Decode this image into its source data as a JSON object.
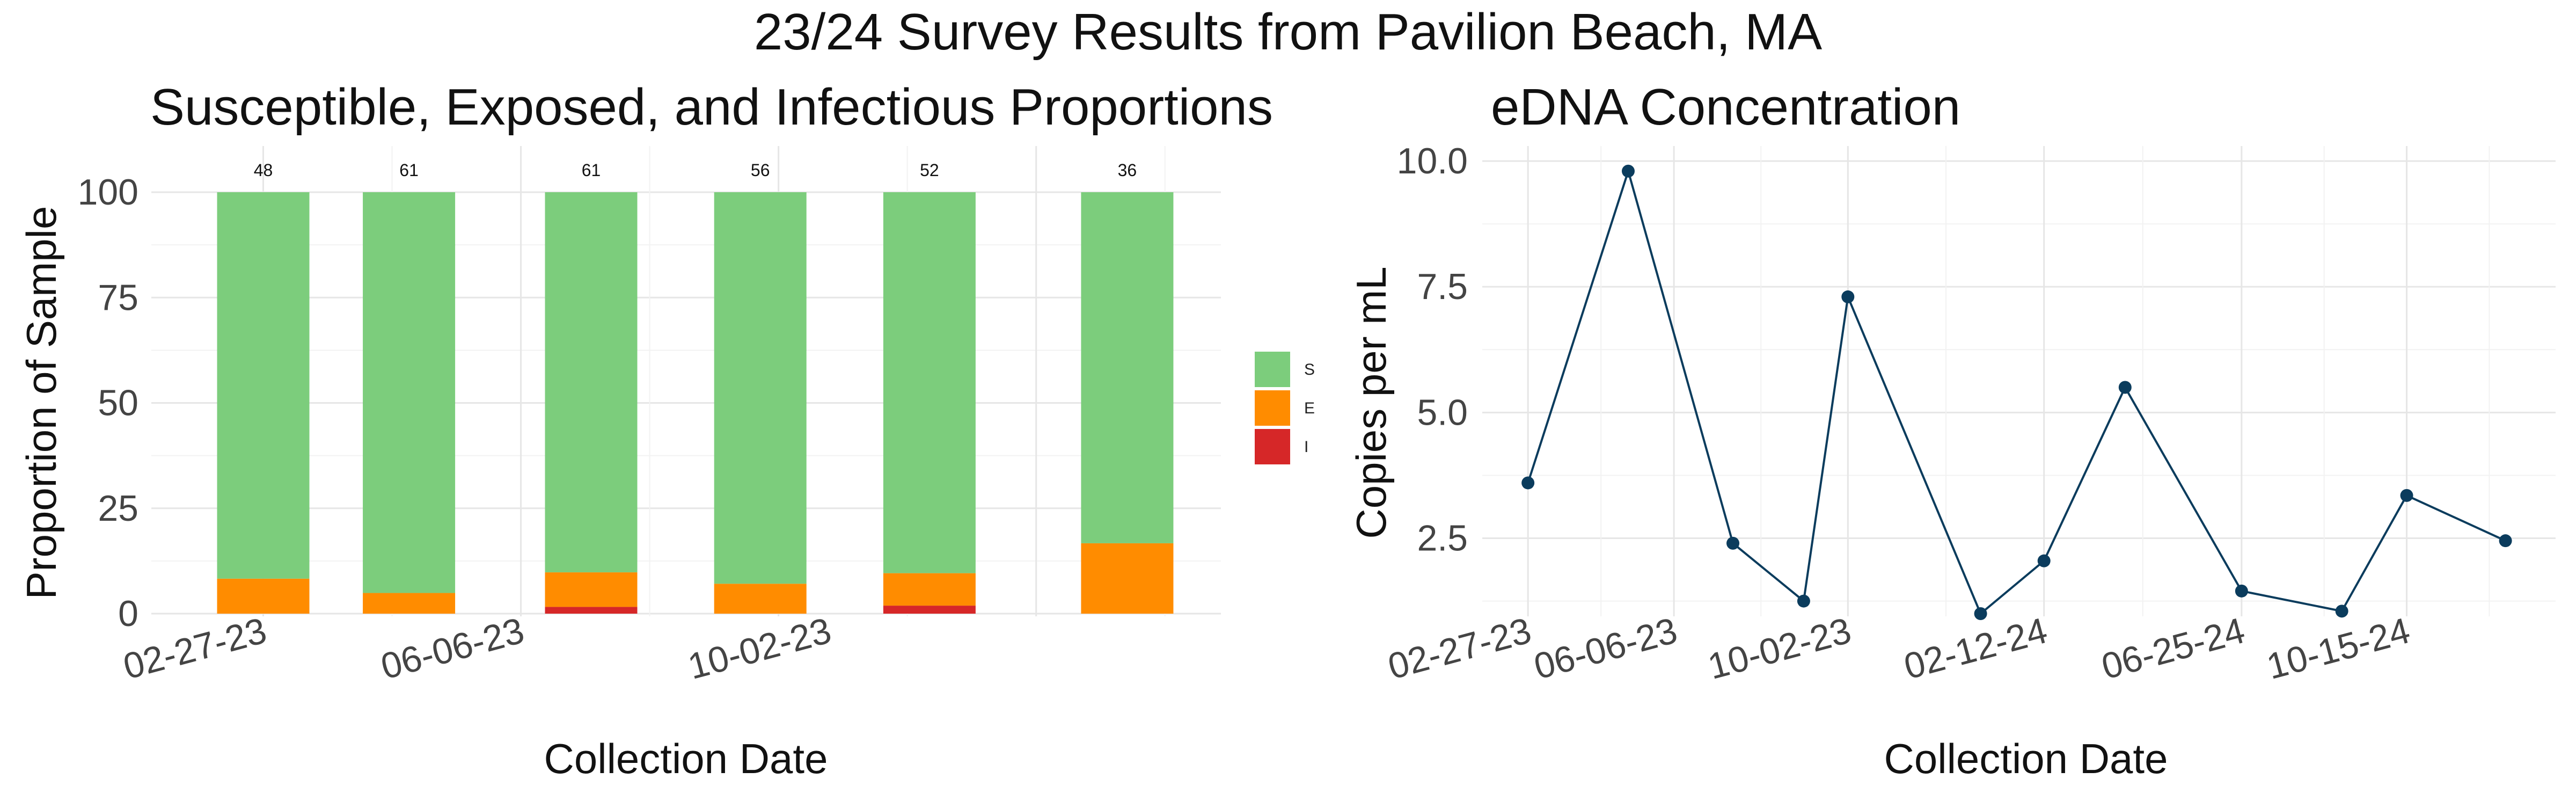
{
  "title": "23/24 Survey Results from  Pavilion Beach, MA",
  "colors": {
    "S": "#7ccd7c",
    "E": "#ff8c00",
    "I": "#d62728",
    "line": "#0b3c5d"
  },
  "chart_data": [
    {
      "type": "bar",
      "stacked": true,
      "title": "Susceptible, Exposed, and Infectious Proportions",
      "xlabel": "Collection Date",
      "ylabel": "Proportion of Sample",
      "ylim": [
        0,
        100
      ],
      "yticks": [
        0,
        25,
        50,
        75,
        100
      ],
      "x_axis_type": "date",
      "xlim": [
        "2023-01-15",
        "2024-03-01"
      ],
      "xticks": [
        {
          "date": "2023-02-27",
          "label": "02-27-23"
        },
        {
          "date": "2023-06-06",
          "label": "06-06-23"
        },
        {
          "date": "2023-10-02",
          "label": "10-02-23"
        }
      ],
      "dates": [
        "2023-02-27",
        "2023-04-24",
        "2023-07-03",
        "2023-09-06",
        "2023-11-10",
        "2024-01-25"
      ],
      "series": [
        {
          "name": "S",
          "values": [
            91.7,
            95.1,
            90.2,
            92.9,
            90.4,
            83.3
          ]
        },
        {
          "name": "E",
          "values": [
            8.3,
            4.9,
            8.2,
            7.1,
            7.7,
            16.7
          ]
        },
        {
          "name": "I",
          "values": [
            0,
            0,
            1.6,
            0,
            1.9,
            0
          ]
        }
      ],
      "counts": [
        "48",
        "61",
        "61",
        "56",
        "52",
        "36"
      ],
      "legend": {
        "position": "right",
        "entries": [
          "S",
          "E",
          "I"
        ]
      },
      "grid": true
    },
    {
      "type": "line",
      "markers": true,
      "title": "eDNA Concentration",
      "xlabel": "Collection Date",
      "ylabel": "Copies per mL",
      "ylim": [
        1.0,
        10.0
      ],
      "yticks": [
        "2.5",
        "5.0",
        "7.5",
        "10.0"
      ],
      "x_axis_type": "date",
      "xlim": [
        "2023-01-27",
        "2025-01-24"
      ],
      "xticks": [
        {
          "date": "2023-02-27",
          "label": "02-27-23"
        },
        {
          "date": "2023-06-06",
          "label": "06-06-23"
        },
        {
          "date": "2023-10-02",
          "label": "10-02-23"
        },
        {
          "date": "2024-02-12",
          "label": "02-12-24"
        },
        {
          "date": "2024-06-25",
          "label": "06-25-24"
        },
        {
          "date": "2024-10-15",
          "label": "10-15-24"
        }
      ],
      "series": [
        {
          "x": [
            "2023-02-27",
            "2023-05-06",
            "2023-07-16",
            "2023-09-02",
            "2023-10-02",
            "2023-12-31",
            "2024-02-12",
            "2024-04-07",
            "2024-06-25",
            "2024-09-01",
            "2024-10-15",
            "2024-12-21"
          ],
          "y": [
            3.6,
            9.8,
            2.4,
            1.25,
            7.3,
            1.0,
            2.05,
            5.5,
            1.45,
            1.05,
            3.35,
            2.45
          ]
        }
      ],
      "grid": true
    }
  ]
}
